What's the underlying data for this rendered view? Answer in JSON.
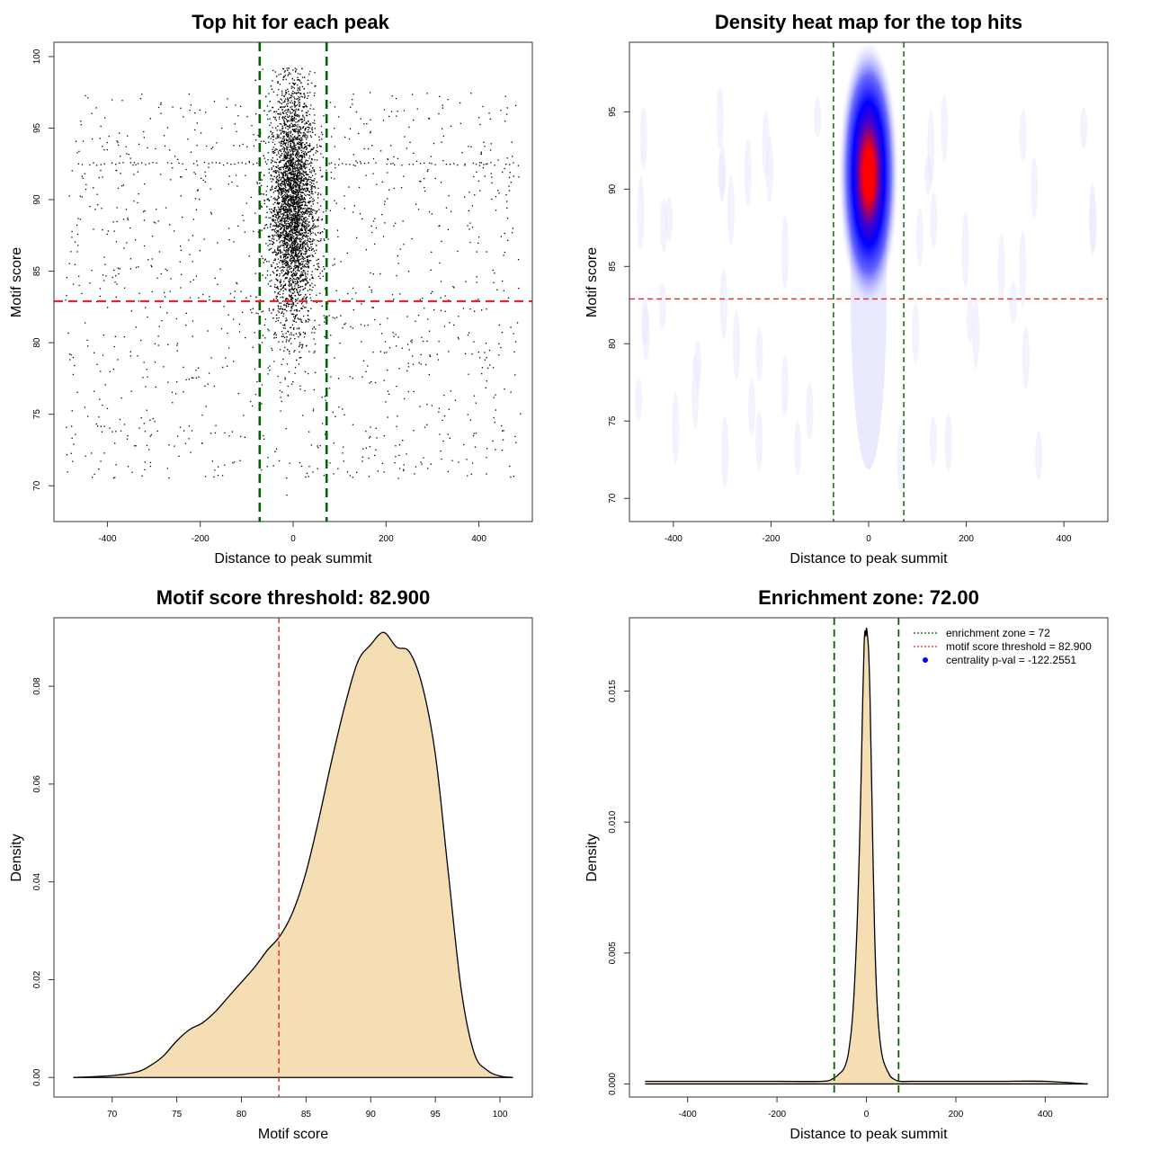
{
  "chart_data": [
    {
      "type": "scatter",
      "title": "Top hit for each peak",
      "xlabel": "Distance to peak summit",
      "ylabel": "Motif score",
      "xlim": [
        -515,
        515
      ],
      "ylim": [
        67.5,
        101
      ],
      "xticks": [
        -400,
        -200,
        0,
        200,
        400
      ],
      "yticks": [
        70,
        75,
        80,
        85,
        90,
        95,
        100
      ],
      "points": {
        "central": {
          "x_mean": 0,
          "x_sd": 24,
          "y_mean": 89.5,
          "y_sd": 4.2,
          "count": 4200
        },
        "background": {
          "x_min": -490,
          "x_max": 490,
          "y_min": 70.5,
          "y_max": 97.5,
          "count": 1200
        },
        "dotted_row_y": 92.5
      },
      "vlines": [
        -72,
        72
      ],
      "hline": 82.9,
      "colors": {
        "points": "#000000",
        "vline": "#006400",
        "hline": "#e0282c"
      }
    },
    {
      "type": "heatmap",
      "title": "Density heat map for the top hits",
      "xlabel": "Distance to peak summit",
      "ylabel": "Motif score",
      "xlim": [
        -490,
        490
      ],
      "ylim": [
        68.5,
        99.5
      ],
      "xticks": [
        -400,
        -200,
        0,
        200,
        400
      ],
      "yticks": [
        70,
        75,
        80,
        85,
        90,
        95
      ],
      "peak": {
        "x": 0,
        "y": 91,
        "x_sd": 11,
        "y_sd": 4
      },
      "vlines": [
        -72,
        72
      ],
      "hline": 82.9,
      "colors": {
        "low": "#ffffff",
        "mid": "#0000ff",
        "high": "#ff0000",
        "vline": "#006400",
        "hline": "#e0282c"
      }
    },
    {
      "type": "area",
      "title": "Motif score threshold: 82.900",
      "xlabel": "Motif score",
      "ylabel": "Density",
      "xlim": [
        65.5,
        102.5
      ],
      "ylim": [
        -0.004,
        0.094
      ],
      "xticks": [
        70,
        75,
        80,
        85,
        90,
        95,
        100
      ],
      "yticks": [
        0.0,
        0.02,
        0.04,
        0.06,
        0.08
      ],
      "ytick_labels": [
        "0.00",
        "0.02",
        "0.04",
        "0.06",
        "0.08"
      ],
      "x": [
        67,
        70,
        72,
        73,
        74,
        75,
        76,
        77,
        78,
        79,
        80,
        81,
        82,
        83,
        84,
        85,
        86,
        87,
        88,
        89,
        90,
        91,
        92,
        93,
        94,
        95,
        96,
        97,
        98,
        99,
        100,
        101
      ],
      "y": [
        0.0,
        0.0004,
        0.0012,
        0.0025,
        0.0045,
        0.0075,
        0.0098,
        0.0112,
        0.0135,
        0.0165,
        0.0195,
        0.0225,
        0.026,
        0.029,
        0.034,
        0.042,
        0.053,
        0.065,
        0.076,
        0.085,
        0.0885,
        0.091,
        0.088,
        0.087,
        0.08,
        0.066,
        0.042,
        0.018,
        0.005,
        0.0015,
        0.0003,
        0.0
      ],
      "vline": 82.9,
      "colors": {
        "fill": "#f5deb3",
        "line": "#000000",
        "vline": "#e0282c"
      }
    },
    {
      "type": "area",
      "title": "Enrichment zone: 72.00",
      "xlabel": "Distance to peak summit",
      "ylabel": "Density",
      "xlim": [
        -530,
        540
      ],
      "ylim": [
        -0.0005,
        0.0178
      ],
      "xticks": [
        -400,
        -200,
        0,
        200,
        400
      ],
      "yticks": [
        0.0,
        0.005,
        0.01,
        0.015
      ],
      "ytick_labels": [
        "0.000",
        "0.005",
        "0.010",
        "0.015"
      ],
      "x": [
        -495,
        -400,
        -300,
        -200,
        -100,
        -75,
        -60,
        -50,
        -40,
        -30,
        -20,
        -12,
        -8,
        -5,
        -3,
        -1,
        0,
        2,
        5,
        8,
        12,
        18,
        25,
        35,
        50,
        60,
        75,
        100,
        200,
        300,
        400,
        495
      ],
      "y": [
        0.0001,
        0.0001,
        0.0001,
        0.0001,
        0.0001,
        0.0002,
        0.0004,
        0.0006,
        0.0012,
        0.0028,
        0.0065,
        0.0115,
        0.0148,
        0.0168,
        0.0173,
        0.0171,
        0.0174,
        0.0172,
        0.0165,
        0.0148,
        0.0112,
        0.006,
        0.0028,
        0.0011,
        0.0004,
        0.0002,
        0.0001,
        0.0001,
        0.0001,
        0.0001,
        0.0001,
        0.0
      ],
      "vlines": [
        -72,
        72
      ],
      "legend": {
        "position": "top-right",
        "entries": [
          {
            "label": "enrichment zone = 72",
            "style": "dotted-line",
            "color": "#006400"
          },
          {
            "label": "motif score threshold = 82.900",
            "style": "dotted-line",
            "color": "#e0282c"
          },
          {
            "label": "centrality p-val = -122.2551",
            "style": "point",
            "color": "#0000ff"
          }
        ]
      },
      "colors": {
        "fill": "#f5deb3",
        "line": "#000000",
        "vline": "#006400"
      }
    }
  ]
}
